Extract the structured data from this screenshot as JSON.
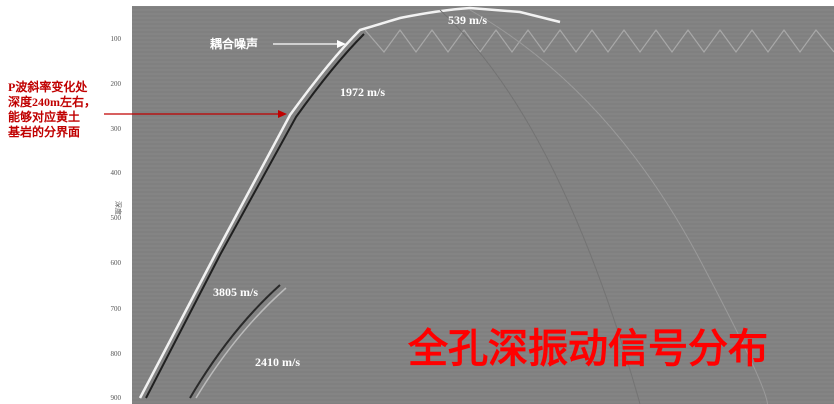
{
  "title": "全孔深振动信号分布",
  "axis": {
    "label": "深度",
    "ticks": [
      "100",
      "200",
      "300",
      "400",
      "500",
      "600",
      "700",
      "800",
      "900"
    ]
  },
  "annotations": {
    "velocity_top": "539 m/s",
    "coupling_noise": "耦合噪声",
    "velocity_upper": "1972 m/s",
    "velocity_lower": "3805 m/s",
    "velocity_s": "2410 m/s",
    "note_lines": [
      "P波斜率变化处",
      "深度240m左右，",
      "能够对应黄土",
      "基岩的分界面"
    ]
  }
}
